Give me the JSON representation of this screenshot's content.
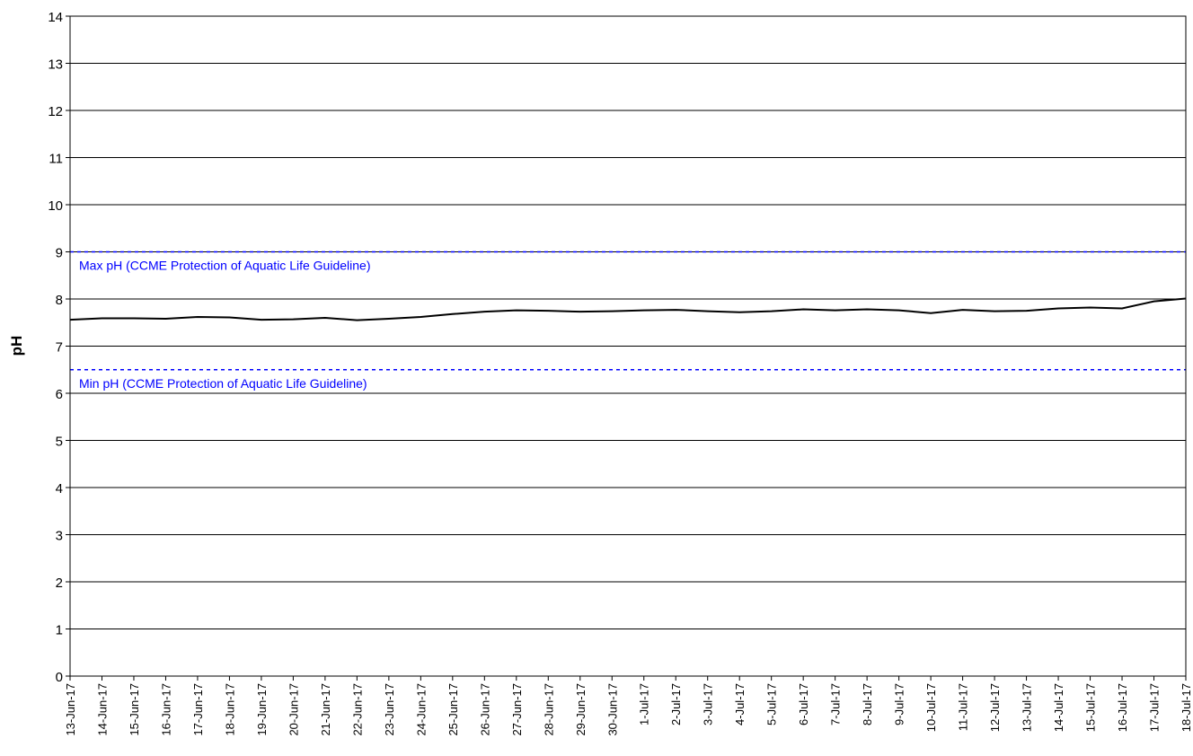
{
  "chart_data": {
    "type": "line",
    "ylabel": "pH",
    "x": [
      "13-Jun-17",
      "14-Jun-17",
      "15-Jun-17",
      "16-Jun-17",
      "17-Jun-17",
      "18-Jun-17",
      "19-Jun-17",
      "20-Jun-17",
      "21-Jun-17",
      "22-Jun-17",
      "23-Jun-17",
      "24-Jun-17",
      "25-Jun-17",
      "26-Jun-17",
      "27-Jun-17",
      "28-Jun-17",
      "29-Jun-17",
      "30-Jun-17",
      "1-Jul-17",
      "2-Jul-17",
      "3-Jul-17",
      "4-Jul-17",
      "5-Jul-17",
      "6-Jul-17",
      "7-Jul-17",
      "8-Jul-17",
      "9-Jul-17",
      "10-Jul-17",
      "11-Jul-17",
      "12-Jul-17",
      "13-Jul-17",
      "14-Jul-17",
      "15-Jul-17",
      "16-Jul-17",
      "17-Jul-17",
      "18-Jul-17"
    ],
    "values": [
      7.56,
      7.59,
      7.59,
      7.58,
      7.62,
      7.61,
      7.56,
      7.57,
      7.6,
      7.55,
      7.58,
      7.62,
      7.68,
      7.73,
      7.76,
      7.75,
      7.73,
      7.74,
      7.76,
      7.77,
      7.74,
      7.72,
      7.74,
      7.78,
      7.76,
      7.78,
      7.76,
      7.7,
      7.77,
      7.74,
      7.75,
      7.8,
      7.82,
      7.8,
      7.95,
      8.01
    ],
    "color": "#000000",
    "ylim": [
      0,
      14
    ],
    "yticks": [
      0,
      1,
      2,
      3,
      4,
      5,
      6,
      7,
      8,
      9,
      10,
      11,
      12,
      13,
      14
    ],
    "grid": true,
    "reference_lines": [
      {
        "value": 9,
        "label": "Max pH (CCME Protection of Aquatic Life Guideline)",
        "color": "#0000ff"
      },
      {
        "value": 6.5,
        "label": "Min pH (CCME Protection of Aquatic Life Guideline)",
        "color": "#0000ff"
      }
    ]
  }
}
